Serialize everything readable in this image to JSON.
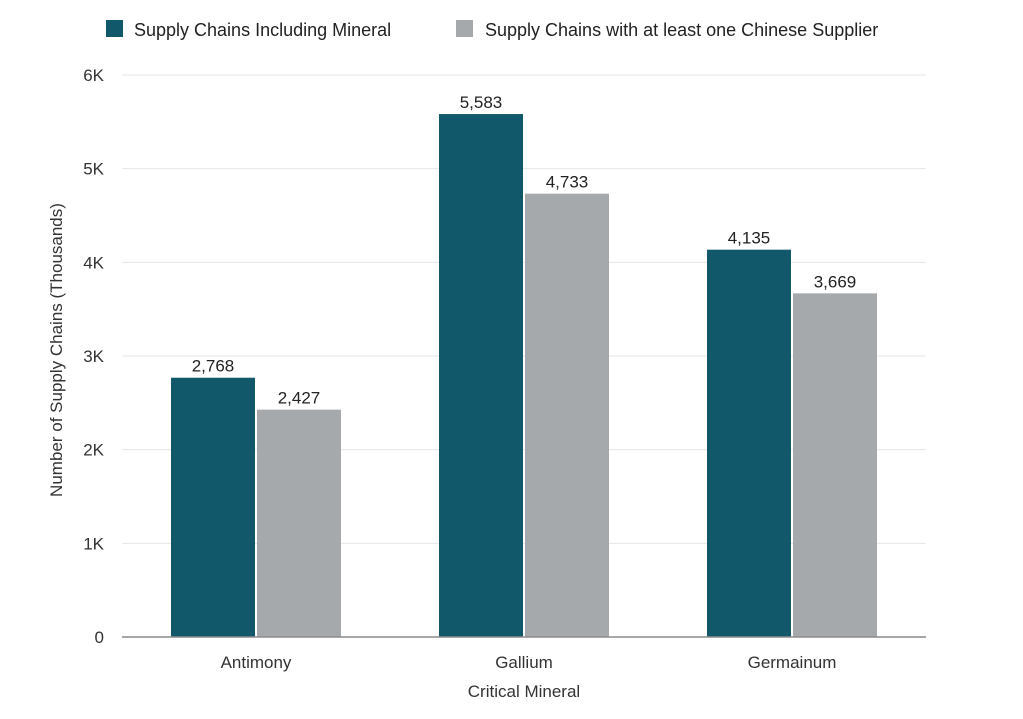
{
  "chart_data": {
    "type": "bar",
    "title": "",
    "xlabel": "Critical Mineral",
    "ylabel": "Number of Supply Chains (Thousands)",
    "categories": [
      "Antimony",
      "Gallium",
      "Germainum"
    ],
    "series": [
      {
        "name": "Supply Chains Including Mineral",
        "color": "#11596a",
        "values": [
          2768,
          5583,
          4135
        ],
        "labels": [
          "2,768",
          "5,583",
          "4,135"
        ]
      },
      {
        "name": "Supply Chains with at least one Chinese Supplier",
        "color": "#a5a9ac",
        "values": [
          2427,
          4733,
          3669
        ],
        "labels": [
          "2,427",
          "4,733",
          "3,669"
        ]
      }
    ],
    "ylim": [
      0,
      6000
    ],
    "yticks": [
      0,
      1000,
      2000,
      3000,
      4000,
      5000,
      6000
    ],
    "ytick_labels": [
      "0",
      "1K",
      "2K",
      "3K",
      "4K",
      "5K",
      "6K"
    ],
    "grid": true,
    "legend_position": "top"
  }
}
